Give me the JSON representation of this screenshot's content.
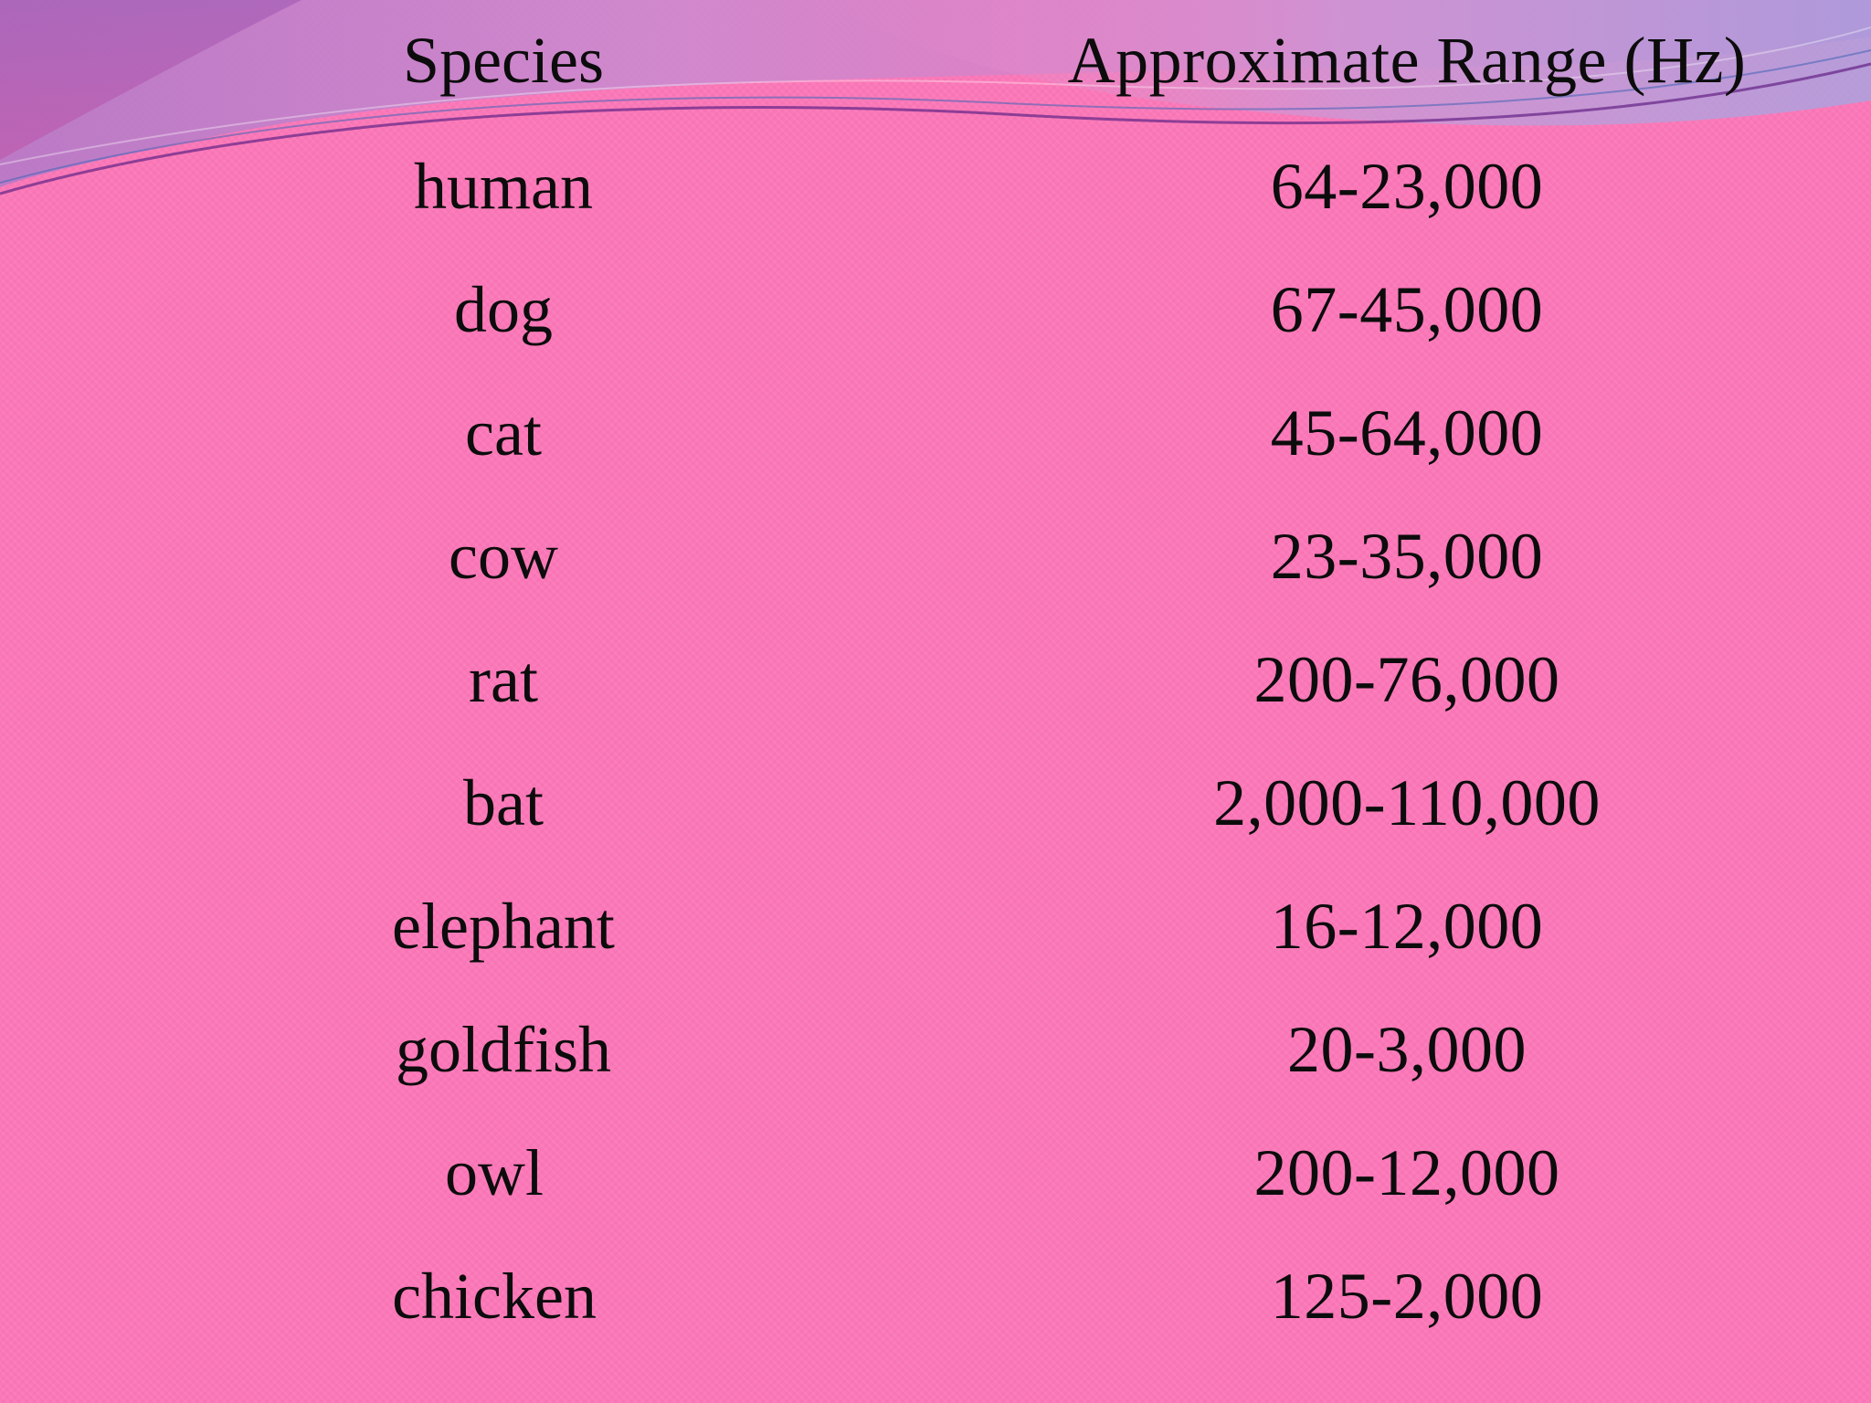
{
  "table": {
    "headers": {
      "species": "Species",
      "range": "Approximate Range (Hz)"
    },
    "rows": [
      {
        "species": "human",
        "range": "64-23,000"
      },
      {
        "species": "dog",
        "range": "67-45,000"
      },
      {
        "species": "cat",
        "range": "45-64,000"
      },
      {
        "species": "cow",
        "range": "23-35,000"
      },
      {
        "species": "rat",
        "range": "200-76,000"
      },
      {
        "species": "bat",
        "range": "2,000-110,000"
      },
      {
        "species": "elephant",
        "range": "16-12,000"
      },
      {
        "species": "goldfish",
        "range": "20-3,000"
      },
      {
        "species": "owl",
        "range": "200-12,000"
      },
      {
        "species": "chicken",
        "range": "125-2,000"
      }
    ]
  },
  "colors": {
    "background": "#fb78b8",
    "swoosh_purple": "#9a6fc0",
    "swoosh_lavender": "#b6a6de",
    "text": "#0c0c0c"
  }
}
